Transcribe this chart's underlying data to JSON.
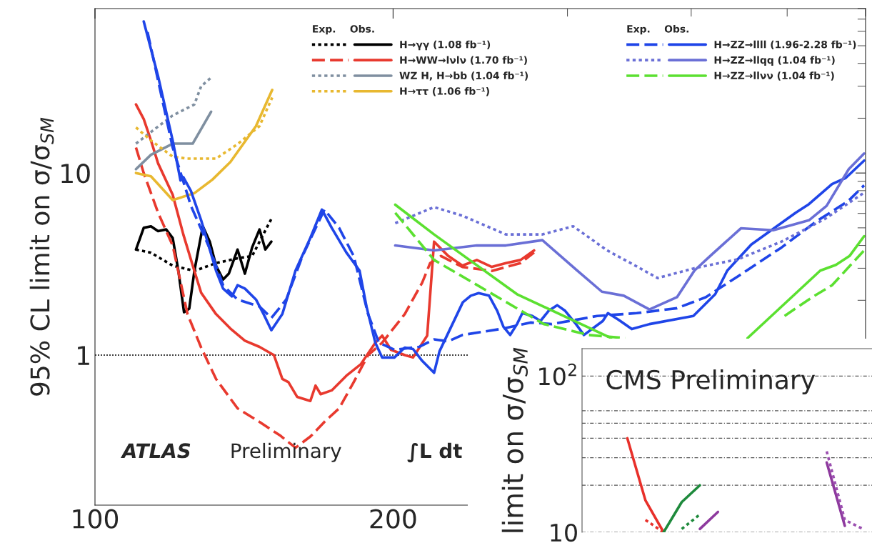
{
  "chart_data": [
    {
      "type": "line",
      "ylabel": "95% CL limit on σ/σ$_{SM}$",
      "legend_title": "Exp.    Obs.",
      "log": "xy",
      "xlim": [
        100,
        600
      ],
      "ylim": [
        0.15,
        80
      ],
      "xticks": [
        100,
        200
      ],
      "yticks": [
        1,
        10
      ],
      "legend": "top right",
      "grid": false,
      "ref_lines": [
        {
          "axis": "y",
          "value": 1,
          "color": "#000000",
          "line_style": "dotted"
        }
      ],
      "annotations": [
        "ATLAS",
        "Preliminary",
        "∫L dt"
      ],
      "series": [
        {
          "color": "#000000",
          "line_style": "dotted",
          "x": [
            110,
            113.9,
            119.8,
            126,
            132.5,
            139.3,
            144.1,
            150.7
          ],
          "values": [
            3.8,
            3.65,
            3.1,
            2.9,
            3.2,
            3.4,
            3.5,
            5.6
          ]
        },
        {
          "name": "H→γγ (1.08 fb⁻¹)",
          "color": "#000000",
          "line_style": "solid",
          "x": [
            110,
            112,
            113.9,
            115.8,
            118,
            119.8,
            121.4,
            123,
            124.5,
            126,
            128.5,
            130.6,
            132.5,
            134.7,
            136.5,
            139.3,
            141.7,
            144.1,
            146.6,
            148.6,
            150.7
          ],
          "values": [
            3.8,
            5.0,
            5.1,
            4.8,
            4.9,
            4.4,
            2.9,
            1.72,
            1.8,
            2.9,
            5.1,
            4.2,
            3.1,
            2.6,
            2.8,
            3.8,
            2.8,
            3.9,
            4.9,
            3.8,
            4.2
          ]
        },
        {
          "color": "#e8392e",
          "line_style": "dashed",
          "x": [
            110,
            112,
            115.8,
            119.8,
            124,
            128,
            132.5,
            139.3,
            146.6,
            154,
            159.4,
            165,
            170.5,
            176.4,
            182.5,
            188.7,
            195,
            205.5,
            214,
            218,
            223.6,
            235,
            251.6,
            269,
            277.6
          ],
          "values": [
            13.8,
            10,
            6.05,
            4.0,
            1.68,
            1.1,
            0.74,
            0.51,
            0.43,
            0.36,
            0.31,
            0.357,
            0.43,
            0.51,
            0.71,
            1.0,
            1.17,
            1.68,
            2.5,
            3.2,
            3.5,
            3.05,
            2.9,
            3.2,
            3.66
          ]
        },
        {
          "name": "H→WW→lνlν (1.70 fb⁻¹)",
          "color": "#e8392e",
          "line_style": "solid",
          "x": [
            110,
            112,
            113.9,
            115.8,
            119.8,
            122.8,
            126,
            128,
            132.5,
            137,
            141.7,
            146.6,
            151.6,
            154.6,
            156.8,
            160,
            165,
            167,
            169,
            173.4,
            179.4,
            185.5,
            191.9,
            195,
            199,
            205.5,
            209.5,
            216.5,
            220,
            227.4,
            235,
            243,
            251.6,
            260,
            269,
            277.6
          ],
          "values": [
            23.8,
            19.8,
            15.1,
            11.3,
            7.6,
            4.6,
            2.9,
            2.2,
            1.68,
            1.4,
            1.2,
            1.11,
            1.0,
            0.74,
            0.71,
            0.59,
            0.56,
            0.68,
            0.61,
            0.64,
            0.77,
            0.89,
            1.17,
            1.28,
            1.07,
            1.0,
            0.97,
            1.28,
            4.2,
            3.5,
            3.1,
            3.33,
            3.05,
            3.2,
            3.33,
            3.76
          ]
        },
        {
          "color": "#7f8fa0",
          "line_style": "dotted",
          "x": [
            110,
            115.8,
            119.8,
            126,
            128,
            131
          ],
          "values": [
            14.5,
            18,
            20.7,
            23.8,
            30,
            33.4
          ]
        },
        {
          "name": "WZ H, H→bb (1.04 fb⁻¹)",
          "color": "#7f8fa0",
          "line_style": "solid",
          "x": [
            110,
            113.9,
            119.8,
            125.5,
            131
          ],
          "values": [
            10.5,
            12.6,
            14.5,
            14.5,
            21.7
          ]
        },
        {
          "color": "#e8b830",
          "line_style": "dotted",
          "x": [
            110,
            113.9,
            119.8,
            124,
            132.5,
            139.3,
            146.6,
            151
          ],
          "values": [
            17.8,
            15.1,
            12.3,
            12,
            12,
            14.4,
            18.1,
            26
          ]
        },
        {
          "name": "H→ττ (1.06 fb⁻¹)",
          "color": "#e8b830",
          "line_style": "solid",
          "x": [
            110,
            113.9,
            119.8,
            126,
            131.4,
            137,
            145.4,
            151
          ],
          "values": [
            10,
            9.6,
            7.1,
            7.75,
            9.2,
            11.5,
            18.1,
            28.6
          ]
        },
        {
          "color": "#1f45e8",
          "line_style": "dashed",
          "x": [
            113,
            119.8,
            125,
            130.7,
            134.7,
            139.3,
            146.6,
            150.7,
            156,
            162,
            170.5,
            176.4,
            182.5,
            188.7,
            193.5,
            200.6,
            212.6,
            220,
            227.4,
            235,
            258.6,
            275.3,
            289.3,
            321.4,
            352.4,
            387.1,
            413.8,
            446,
            493.5,
            535,
            576,
            598
          ],
          "values": [
            59.5,
            13.8,
            6.6,
            3.8,
            2.42,
            2.02,
            1.85,
            1.6,
            2.02,
            3.5,
            6.3,
            5.0,
            3.5,
            1.68,
            1.17,
            1.07,
            1.11,
            1.22,
            1.19,
            1.29,
            1.4,
            1.51,
            1.48,
            1.64,
            1.7,
            1.81,
            2.08,
            2.71,
            3.9,
            5.42,
            7.0,
            8.56
          ]
        },
        {
          "name": "H→ZZ→llll (1.96-2.28 fb⁻¹)",
          "color": "#1f45e8",
          "line_style": "solid",
          "x": [
            112,
            115.8,
            119.8,
            122,
            122.8,
            125,
            128,
            132.5,
            134.7,
            137.5,
            139.3,
            141.7,
            145.4,
            148,
            150.7,
            154.6,
            159.4,
            165,
            169.5,
            173.4,
            179.4,
            185,
            188,
            191.9,
            195,
            200.6,
            205.5,
            209.5,
            214,
            220,
            222.8,
            235.2,
            239.6,
            244,
            250,
            254.8,
            258.5,
            262.6,
            266.8,
            270.1,
            276.5,
            281.8,
            287.1,
            292.9,
            298.4,
            306,
            311.7,
            317.6,
            325.7,
            329.6,
            338,
            348.4,
            363,
            402,
            423,
            435,
            460,
            510,
            526,
            555,
            573,
            598
          ],
          "values": [
            68,
            34,
            15.1,
            9.1,
            9.5,
            7.96,
            5.5,
            2.91,
            2.32,
            2.1,
            2.42,
            2.32,
            2.02,
            1.68,
            1.37,
            1.68,
            2.91,
            4.4,
            6.3,
            5.0,
            3.66,
            2.91,
            1.85,
            1.17,
            0.97,
            0.97,
            1.1,
            1.08,
            0.93,
            0.8,
            1.05,
            1.95,
            2.12,
            2.19,
            2.12,
            1.75,
            1.43,
            1.29,
            1.48,
            1.7,
            1.64,
            1.54,
            1.75,
            1.88,
            1.75,
            1.48,
            1.29,
            1.39,
            1.54,
            1.7,
            1.56,
            1.39,
            1.48,
            1.64,
            2.16,
            2.91,
            4.05,
            6.05,
            6.75,
            8.7,
            9.4,
            11.7
          ]
        },
        {
          "color": "#6a6fd6",
          "line_style": "dotted",
          "x": [
            201,
            220,
            235,
            260,
            283,
            304,
            329,
            352,
            370,
            403,
            446,
            493.5,
            546,
            598
          ],
          "values": [
            5.3,
            6.5,
            5.83,
            4.6,
            4.6,
            5.1,
            3.76,
            3.08,
            2.65,
            3.0,
            3.36,
            4.2,
            5.6,
            7.8
          ]
        },
        {
          "name": "H→ZZ→llqq (1.04 fb⁻¹)",
          "color": "#6a6fd6",
          "line_style": "solid",
          "x": [
            201,
            220,
            243,
            260,
            283,
            307,
            325,
            342,
            363,
            387,
            403,
            418,
            449,
            484,
            526,
            548,
            577,
            598
          ],
          "values": [
            4.0,
            3.76,
            4.0,
            4.0,
            4.28,
            2.91,
            2.23,
            2.12,
            1.78,
            2.08,
            2.91,
            3.5,
            4.97,
            4.85,
            5.5,
            6.6,
            10.5,
            12.8
          ]
        },
        {
          "color": "#5be030",
          "line_style": "dashed",
          "x": [
            201,
            220,
            250,
            284,
            315,
            343,
            435,
            497,
            530,
            555,
            598
          ],
          "values": [
            6.05,
            3.33,
            2.22,
            1.48,
            1.29,
            1.24,
            null,
            1.64,
            2.08,
            2.42,
            3.76
          ]
        },
        {
          "name": "H→ZZ→llνν (1.04 fb⁻¹)",
          "color": "#5be030",
          "line_style": "solid",
          "x": [
            201,
            220,
            266.8,
            332,
            400,
            456,
            540,
            560,
            578,
            598
          ],
          "values": [
            6.7,
            4.6,
            2.16,
            1.24,
            null,
            1.24,
            2.91,
            3.13,
            3.5,
            4.5
          ]
        }
      ]
    },
    {
      "type": "line",
      "ylabel": "limit on σ/σ$_{SM}$",
      "log": "y",
      "ylim": [
        10,
        150
      ],
      "yticks": [
        {
          "value": 10,
          "label": "10"
        },
        {
          "value": 20,
          "label": null
        },
        {
          "value": 30,
          "label": null
        },
        {
          "value": 40,
          "label": null
        },
        {
          "value": 50,
          "label": null
        },
        {
          "value": 60,
          "label": null
        },
        {
          "value": 100,
          "label": "10$^{2}$"
        }
      ],
      "grid": "y",
      "tick_labels": "y",
      "annotations": [
        "CMS Preliminary"
      ],
      "categories": [
        null,
        null,
        null,
        null,
        null,
        null,
        null,
        null,
        null,
        null,
        null,
        null,
        null,
        null,
        null,
        null
      ],
      "series": [
        {
          "color": "#e8302a",
          "line_style": "solid",
          "values": [
            null,
            null,
            40,
            16,
            10,
            null,
            null,
            null,
            null,
            null,
            null,
            null,
            null,
            null,
            null,
            null
          ]
        },
        {
          "color": "#e8302a",
          "line_style": "dotted",
          "values": [
            null,
            null,
            null,
            12,
            10,
            null,
            null,
            null,
            null,
            null,
            null,
            null,
            null,
            null,
            null,
            null
          ]
        },
        {
          "color": "#1e8a3c",
          "line_style": "solid",
          "values": [
            null,
            null,
            null,
            null,
            10,
            15.6,
            20,
            null,
            null,
            null,
            null,
            null,
            null,
            null,
            null,
            null
          ]
        },
        {
          "color": "#1e8a3c",
          "line_style": "dotted",
          "values": [
            null,
            null,
            null,
            null,
            null,
            10.5,
            13,
            null,
            null,
            null,
            null,
            null,
            null,
            null,
            null,
            null
          ]
        },
        {
          "color": "#8e3a9e",
          "line_style": "solid",
          "values": [
            null,
            null,
            null,
            null,
            null,
            null,
            10.5,
            13.5,
            null,
            null,
            null,
            null,
            null,
            null,
            null,
            null
          ]
        },
        {
          "color": "#8e3a9e",
          "line_style": "solid",
          "values": [
            null,
            null,
            null,
            null,
            null,
            null,
            null,
            null,
            null,
            null,
            null,
            null,
            null,
            28,
            11,
            null
          ]
        },
        {
          "color": "#9b4fb0",
          "line_style": "dotted",
          "values": [
            null,
            null,
            null,
            null,
            null,
            null,
            null,
            null,
            null,
            null,
            null,
            null,
            null,
            33,
            12,
            10.5
          ]
        }
      ]
    }
  ]
}
